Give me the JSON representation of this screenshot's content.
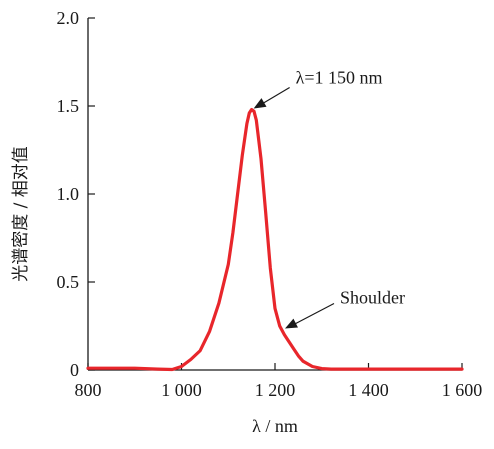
{
  "colors": {
    "series": "#e8262b",
    "axis": "#1a1a1a"
  },
  "chart_data": {
    "type": "line",
    "xlabel": "λ / nm",
    "ylabel": "光谱密度 / 相对值",
    "xlim": [
      800,
      1600
    ],
    "ylim": [
      0,
      2.0
    ],
    "x_ticks": [
      800,
      1000,
      1200,
      1400,
      1600
    ],
    "x_tick_labels": [
      "800",
      "1 000",
      "1 200",
      "1 400",
      "1 600"
    ],
    "y_ticks": [
      0,
      0.5,
      1.0,
      1.5,
      2.0
    ],
    "y_tick_labels": [
      "0",
      "0.5",
      "1.0",
      "1.5",
      "2.0"
    ],
    "grid": false,
    "series": [
      {
        "x": [
          800,
          850,
          900,
          950,
          980,
          1000,
          1020,
          1040,
          1060,
          1080,
          1100,
          1110,
          1120,
          1130,
          1140,
          1145,
          1150,
          1155,
          1160,
          1170,
          1180,
          1190,
          1200,
          1210,
          1220,
          1230,
          1240,
          1250,
          1260,
          1280,
          1300,
          1320,
          1350,
          1400,
          1500,
          1600
        ],
        "y": [
          0.01,
          0.01,
          0.01,
          0.005,
          0.003,
          0.02,
          0.06,
          0.11,
          0.22,
          0.38,
          0.6,
          0.78,
          1.0,
          1.22,
          1.4,
          1.46,
          1.48,
          1.47,
          1.42,
          1.2,
          0.9,
          0.58,
          0.35,
          0.25,
          0.2,
          0.16,
          0.12,
          0.08,
          0.05,
          0.02,
          0.008,
          0.005,
          0.005,
          0.005,
          0.005,
          0.005
        ]
      }
    ],
    "annotations": [
      {
        "text": "λ=1 150 nm",
        "x": 1150,
        "y": 1.48
      },
      {
        "text": "Shoulder",
        "x": 1215,
        "y": 0.23
      }
    ]
  }
}
